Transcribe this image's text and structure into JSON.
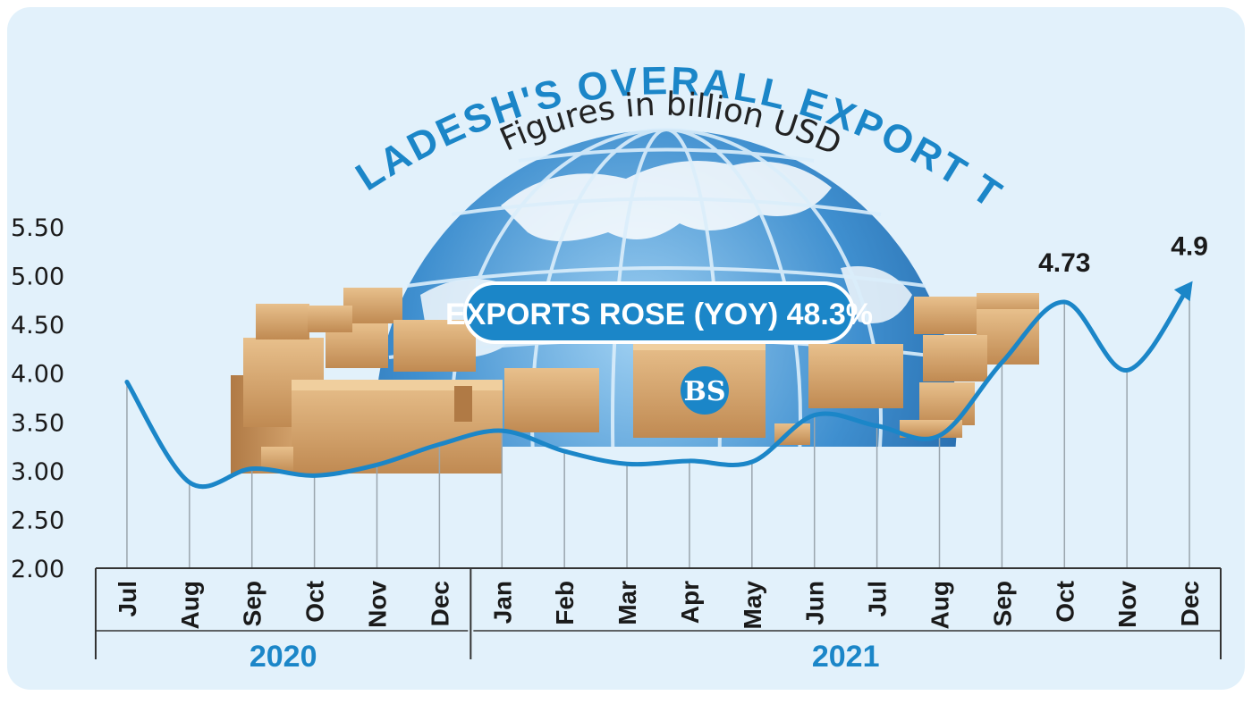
{
  "colors": {
    "background": "#e2f1fb",
    "accent": "#1b86c8",
    "line": "#1b86c8",
    "text": "#1a1a1a",
    "globe": "#3f8fcf",
    "box": "#d2a46c"
  },
  "title": "BANGLADESH'S OVERALL EXPORT TREND",
  "subtitle": "Figures in billion USD",
  "callout": "EXPORTS ROSE (YOY) 48.3%",
  "logo_letters": "BS",
  "icons": [
    "globe-illustration",
    "cardboard-box-illustration",
    "arrow-head-icon",
    "bs-logo"
  ],
  "chart_data": {
    "type": "line",
    "title": "BANGLADESH'S OVERALL EXPORT TREND",
    "subtitle": "Figures in billion USD",
    "xlabel": "",
    "ylabel": "",
    "ylim": [
      2.0,
      5.5
    ],
    "yticks": [
      "2.00",
      "2.50",
      "3.00",
      "3.50",
      "4.00",
      "4.50",
      "5.00",
      "5.50"
    ],
    "categories": [
      "Jul",
      "Aug",
      "Sep",
      "Oct",
      "Nov",
      "Dec",
      "Jan",
      "Feb",
      "Mar",
      "Apr",
      "May",
      "Jun",
      "Jul",
      "Aug",
      "Sep",
      "Oct",
      "Nov",
      "Dec"
    ],
    "groups": [
      {
        "label": "2020",
        "from": 0,
        "to": 5
      },
      {
        "label": "2021",
        "from": 6,
        "to": 17
      }
    ],
    "series": [
      {
        "values": [
          3.91,
          2.88,
          3.02,
          2.95,
          3.06,
          3.27,
          3.41,
          3.2,
          3.07,
          3.1,
          3.09,
          3.57,
          3.46,
          3.36,
          4.11,
          4.73,
          4.03,
          4.9
        ]
      }
    ],
    "data_labels": [
      {
        "index": 15,
        "text": "4.73"
      },
      {
        "index": 17,
        "text": "4.9"
      }
    ],
    "grid": false,
    "legend": "none"
  }
}
